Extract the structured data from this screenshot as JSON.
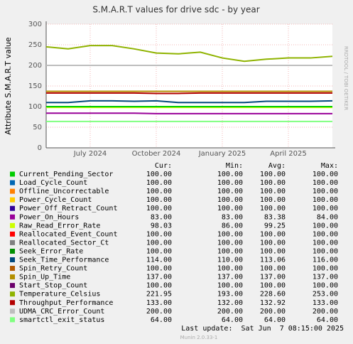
{
  "chart_data": {
    "type": "line",
    "title": "S.M.A.R.T values for drive sdc - by year",
    "y_label": "Attribute S.M.A.R.T value",
    "side_label": "RRDTOOL / TOBI OETIKER",
    "x": [
      "2024-05",
      "2024-06",
      "2024-07",
      "2024-08",
      "2024-09",
      "2024-10",
      "2024-11",
      "2024-12",
      "2025-01",
      "2025-02",
      "2025-03",
      "2025-04",
      "2025-05",
      "2025-06"
    ],
    "xlim": [
      "2024-05",
      "2025-06"
    ],
    "xticks": [
      {
        "value": "2024-07",
        "label": "July 2024"
      },
      {
        "value": "2024-10",
        "label": "October 2024"
      },
      {
        "value": "2025-01",
        "label": "January 2025"
      },
      {
        "value": "2025-04",
        "label": "April 2025"
      }
    ],
    "ylim": [
      0,
      300
    ],
    "yticks": [
      0,
      50,
      100,
      150,
      200,
      250,
      300
    ],
    "grid": true,
    "series": [
      {
        "name": "Current_Pending_Sector",
        "color": "#00cc00",
        "values": [
          100,
          100,
          100,
          100,
          100,
          100,
          100,
          100,
          100,
          100,
          100,
          100,
          100,
          100
        ]
      },
      {
        "name": "Load_Cycle_Count",
        "color": "#0066b3",
        "values": [
          100,
          100,
          100,
          100,
          100,
          100,
          100,
          100,
          100,
          100,
          100,
          100,
          100,
          100
        ]
      },
      {
        "name": "Offline_Uncorrectable",
        "color": "#ff8000",
        "values": [
          100,
          100,
          100,
          100,
          100,
          100,
          100,
          100,
          100,
          100,
          100,
          100,
          100,
          100
        ]
      },
      {
        "name": "Power_Cycle_Count",
        "color": "#ffcc00",
        "values": [
          100,
          100,
          100,
          100,
          100,
          100,
          100,
          100,
          100,
          100,
          100,
          100,
          100,
          100
        ]
      },
      {
        "name": "Power_Off_Retract_Count",
        "color": "#330099",
        "values": [
          100,
          100,
          100,
          100,
          100,
          100,
          100,
          100,
          100,
          100,
          100,
          100,
          100,
          100
        ]
      },
      {
        "name": "Power_On_Hours",
        "color": "#990099",
        "values": [
          84,
          84,
          84,
          84,
          84,
          83,
          83,
          83,
          83,
          83,
          83,
          83,
          83,
          83
        ]
      },
      {
        "name": "Raw_Read_Error_Rate",
        "color": "#ccff00",
        "values": [
          98,
          98,
          98,
          98,
          98,
          98,
          98,
          98,
          98,
          98,
          98,
          98,
          98,
          98
        ]
      },
      {
        "name": "Reallocated_Event_Count",
        "color": "#ff0000",
        "values": [
          100,
          100,
          100,
          100,
          100,
          100,
          100,
          100,
          100,
          100,
          100,
          100,
          100,
          100
        ]
      },
      {
        "name": "Reallocated_Sector_Ct",
        "color": "#808080",
        "values": [
          100,
          100,
          100,
          100,
          100,
          100,
          100,
          100,
          100,
          100,
          100,
          100,
          100,
          100
        ]
      },
      {
        "name": "Seek_Error_Rate",
        "color": "#008f00",
        "values": [
          100,
          100,
          100,
          100,
          100,
          100,
          100,
          100,
          100,
          100,
          100,
          100,
          100,
          100
        ]
      },
      {
        "name": "Seek_Time_Performance",
        "color": "#00487d",
        "values": [
          110,
          110,
          114,
          114,
          113,
          114,
          110,
          110,
          110,
          110,
          113,
          113,
          113,
          114
        ]
      },
      {
        "name": "Spin_Retry_Count",
        "color": "#b35a00",
        "values": [
          100,
          100,
          100,
          100,
          100,
          100,
          100,
          100,
          100,
          100,
          100,
          100,
          100,
          100
        ]
      },
      {
        "name": "Spin_Up_Time",
        "color": "#b38f00",
        "values": [
          137,
          137,
          137,
          137,
          137,
          137,
          137,
          137,
          137,
          137,
          137,
          137,
          137,
          137
        ]
      },
      {
        "name": "Start_Stop_Count",
        "color": "#6b006b",
        "values": [
          100,
          100,
          100,
          100,
          100,
          100,
          100,
          100,
          100,
          100,
          100,
          100,
          100,
          100
        ]
      },
      {
        "name": "Temperature_Celsius",
        "color": "#8fb300",
        "values": [
          245,
          240,
          248,
          248,
          240,
          230,
          228,
          232,
          218,
          210,
          215,
          218,
          218,
          222
        ]
      },
      {
        "name": "Throughput_Performance",
        "color": "#b30000",
        "values": [
          133,
          133,
          133,
          133,
          133,
          132,
          132,
          133,
          133,
          133,
          133,
          133,
          133,
          133
        ]
      },
      {
        "name": "UDMA_CRC_Error_Count",
        "color": "#bebebe",
        "values": [
          200,
          200,
          200,
          200,
          200,
          200,
          200,
          200,
          200,
          200,
          200,
          200,
          200,
          200
        ]
      },
      {
        "name": "smartctl_exit_status",
        "color": "#80ff80",
        "values": [
          64,
          64,
          64,
          64,
          64,
          64,
          64,
          64,
          64,
          64,
          64,
          64,
          64,
          64
        ]
      }
    ],
    "legend_table": {
      "columns": [
        "Cur:",
        "Min:",
        "Avg:",
        "Max:"
      ],
      "rows": [
        [
          "100.00",
          "100.00",
          "100.00",
          "100.00"
        ],
        [
          "100.00",
          "100.00",
          "100.00",
          "100.00"
        ],
        [
          "100.00",
          "100.00",
          "100.00",
          "100.00"
        ],
        [
          "100.00",
          "100.00",
          "100.00",
          "100.00"
        ],
        [
          "100.00",
          "100.00",
          "100.00",
          "100.00"
        ],
        [
          "83.00",
          "83.00",
          "83.38",
          "84.00"
        ],
        [
          "98.03",
          "86.00",
          "99.25",
          "100.00"
        ],
        [
          "100.00",
          "100.00",
          "100.00",
          "100.00"
        ],
        [
          "100.00",
          "100.00",
          "100.00",
          "100.00"
        ],
        [
          "100.00",
          "100.00",
          "100.00",
          "100.00"
        ],
        [
          "114.00",
          "110.00",
          "113.06",
          "116.00"
        ],
        [
          "100.00",
          "100.00",
          "100.00",
          "100.00"
        ],
        [
          "137.00",
          "137.00",
          "137.00",
          "137.00"
        ],
        [
          "100.00",
          "100.00",
          "100.00",
          "100.00"
        ],
        [
          "221.95",
          "193.00",
          "228.60",
          "253.00"
        ],
        [
          "133.00",
          "132.00",
          "132.92",
          "133.00"
        ],
        [
          "200.00",
          "200.00",
          "200.00",
          "200.00"
        ],
        [
          "64.00",
          "64.00",
          "64.00",
          "64.00"
        ]
      ]
    },
    "last_update": "Last update:  Sat Jun  7 08:15:00 2025",
    "footer": "Munin 2.0.33-1"
  }
}
